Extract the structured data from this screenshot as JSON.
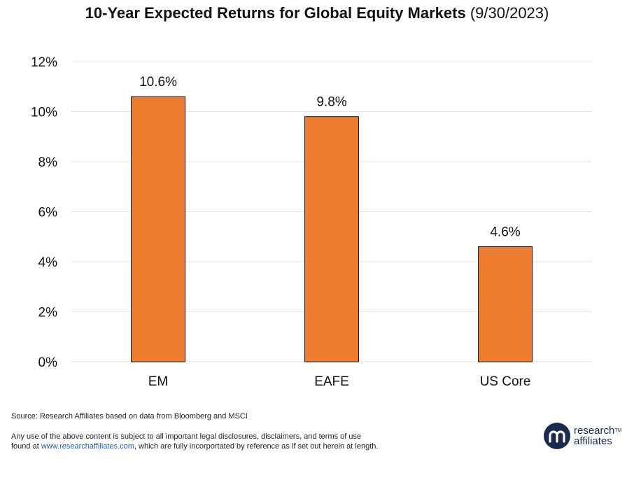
{
  "chart_data": {
    "type": "bar",
    "title": "10-Year Expected Returns for Global Equity Markets",
    "title_date": "(9/30/2023)",
    "categories": [
      "EM",
      "EAFE",
      "US Core"
    ],
    "values": [
      10.6,
      9.8,
      4.6
    ],
    "data_labels": [
      "10.6%",
      "9.8%",
      "4.6%"
    ],
    "ylim": [
      0,
      12
    ],
    "yticks": [
      0,
      2,
      4,
      6,
      8,
      10,
      12
    ],
    "ytick_labels": [
      "0%",
      "2%",
      "4%",
      "6%",
      "8%",
      "10%",
      "12%"
    ],
    "xlabel": "",
    "ylabel": "",
    "grid": true,
    "bar_color": "#ed7d31",
    "bar_edge_color": "#1a1a1a",
    "grid_color": "#e3e3e3"
  },
  "footer": {
    "source": "Source: Research Affiliates based on data from Bloomberg and MSCI",
    "disclaimer_line1": "Any use of the above content is subject to all important legal disclosures, disclaimers, and terms of use",
    "disclaimer_prefix": "found at ",
    "disclaimer_link": "www.researchaffiliates.com",
    "disclaimer_suffix": ", which are fully incorportated by reference as if set out herein at length."
  },
  "logo": {
    "line1": "research",
    "tm": "TM",
    "line2": "affiliates",
    "icon": "research-affiliates-logo-icon",
    "color": "#1b2a4e"
  }
}
